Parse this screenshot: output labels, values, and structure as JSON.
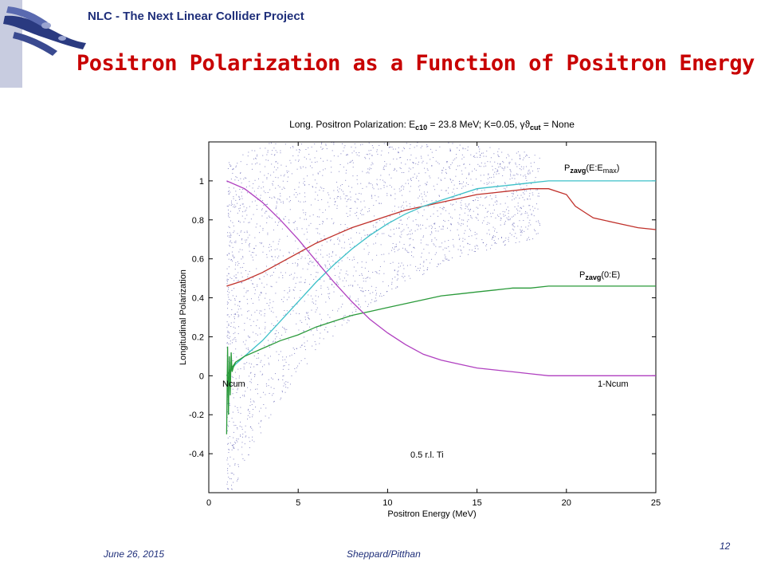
{
  "header": {
    "org": "NLC - The Next Linear Collider Project",
    "title": "Positron Polarization as a Function of Positron Energy"
  },
  "footer": {
    "date": "June 26, 2015",
    "author": "Sheppard/Pitthan",
    "page": "12"
  },
  "chart_data": {
    "type": "line",
    "title_main": "Long. Positron Polarization: E",
    "title_sub1": "c10",
    "title_mid": " = 23.8 MeV; K=0.05, ",
    "title_gamma": "γϑ",
    "title_sub2": "cut",
    "title_end": " = None",
    "xlabel": "Positron Energy (MeV)",
    "ylabel": "Longitudinal Polarization",
    "xlim": [
      0,
      25
    ],
    "ylim": [
      -0.6,
      1.2
    ],
    "xticks": [
      0,
      5,
      10,
      15,
      20,
      25
    ],
    "yticks": [
      -0.4,
      -0.2,
      0,
      0.2,
      0.4,
      0.6,
      0.8,
      1
    ],
    "grid": false,
    "colors": {
      "red": "#c0302a",
      "cyan": "#3cc0c8",
      "green": "#2a9a3a",
      "magenta": "#b040c0",
      "scatter": "#3a3aa0"
    },
    "annotations": {
      "p_emax_main": "P",
      "p_emax_sub": "zavg",
      "p_emax_text": "(E:E",
      "p_emax_sub2": "max",
      "p_emax_close": ")",
      "p_0e_main": "P",
      "p_0e_sub": "zavg",
      "p_0e_text": "(0:E)",
      "ncum": "Ncum",
      "one_minus_ncum": "1-Ncum",
      "target": "0.5 r.l. Ti"
    },
    "series": [
      {
        "color": "red",
        "x": [
          1,
          2,
          3,
          4,
          5,
          6,
          7,
          8,
          9,
          10,
          11,
          12,
          13,
          14,
          15,
          16,
          17,
          18,
          19,
          20,
          20.5,
          21,
          21.5,
          22,
          23,
          24,
          25
        ],
        "y": [
          0.46,
          0.49,
          0.53,
          0.58,
          0.63,
          0.68,
          0.72,
          0.76,
          0.79,
          0.82,
          0.85,
          0.87,
          0.89,
          0.91,
          0.93,
          0.94,
          0.95,
          0.96,
          0.96,
          0.93,
          0.87,
          0.84,
          0.81,
          0.8,
          0.78,
          0.76,
          0.75
        ]
      },
      {
        "color": "cyan",
        "x": [
          1,
          1.5,
          2,
          3,
          4,
          5,
          6,
          7,
          8,
          9,
          10,
          11,
          12,
          13,
          14,
          15,
          16,
          17,
          18,
          19,
          20,
          22,
          25
        ],
        "y": [
          0.0,
          0.06,
          0.1,
          0.18,
          0.28,
          0.38,
          0.48,
          0.57,
          0.65,
          0.72,
          0.78,
          0.83,
          0.87,
          0.9,
          0.93,
          0.96,
          0.97,
          0.98,
          0.99,
          1.0,
          1.0,
          1.0,
          1.0
        ]
      },
      {
        "color": "green",
        "x": [
          1,
          1.5,
          2,
          3,
          4,
          5,
          6,
          7,
          8,
          9,
          10,
          11,
          12,
          13,
          14,
          15,
          16,
          17,
          18,
          19,
          20,
          22,
          25
        ],
        "y": [
          0.0,
          0.07,
          0.1,
          0.14,
          0.18,
          0.21,
          0.25,
          0.28,
          0.31,
          0.33,
          0.35,
          0.37,
          0.39,
          0.41,
          0.42,
          0.43,
          0.44,
          0.45,
          0.45,
          0.46,
          0.46,
          0.46,
          0.46
        ]
      },
      {
        "color": "magenta",
        "x": [
          1,
          2,
          3,
          4,
          5,
          6,
          7,
          8,
          9,
          10,
          11,
          12,
          13,
          14,
          15,
          16,
          17,
          18,
          19,
          20,
          21,
          22,
          25
        ],
        "y": [
          1.0,
          0.96,
          0.89,
          0.8,
          0.7,
          0.59,
          0.48,
          0.38,
          0.29,
          0.22,
          0.16,
          0.11,
          0.08,
          0.06,
          0.04,
          0.03,
          0.02,
          0.01,
          0.0,
          0.0,
          0.0,
          0.0,
          0.0
        ]
      },
      {
        "color": "green",
        "x": [
          1.0,
          1.05,
          1.1,
          1.15,
          1.2,
          1.25,
          1.3,
          1.4,
          1.5
        ],
        "y": [
          -0.3,
          0.15,
          -0.2,
          0.1,
          -0.1,
          0.12,
          0.02,
          0.05,
          0.07
        ]
      }
    ]
  }
}
